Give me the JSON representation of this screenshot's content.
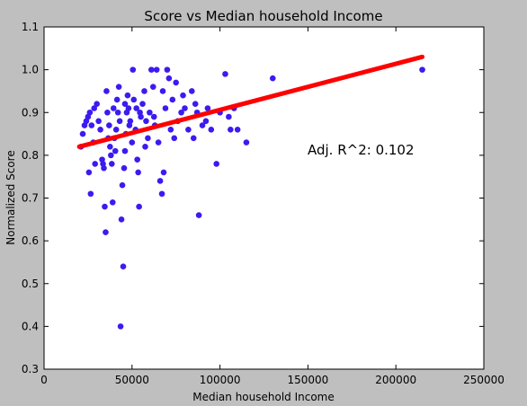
{
  "chart_data": {
    "type": "scatter",
    "title": "Score vs Median household Income",
    "xlabel": "Median household Income",
    "ylabel": "Normalized Score",
    "xlim": [
      0,
      250000
    ],
    "ylim": [
      0.3,
      1.1
    ],
    "x_ticks": [
      0,
      50000,
      100000,
      150000,
      200000,
      250000
    ],
    "y_ticks": [
      0.3,
      0.4,
      0.5,
      0.6,
      0.7,
      0.8,
      0.9,
      1.0,
      1.1
    ],
    "x_tick_labels": [
      "0",
      "50000",
      "100000",
      "150000",
      "200000",
      "250000"
    ],
    "y_tick_labels": [
      "0.3",
      "0.4",
      "0.5",
      "0.6",
      "0.7",
      "0.8",
      "0.9",
      "1.0",
      "1.1"
    ],
    "grid": false,
    "annotation": "Adj. R^2: 0.102",
    "point_color": "#3b1bf0",
    "line_color": "#ff0000",
    "regression_line": {
      "x": [
        20000,
        215000
      ],
      "y": [
        0.82,
        1.03
      ]
    },
    "points": [
      {
        "x": 21000,
        "y": 0.82
      },
      {
        "x": 22000,
        "y": 0.85
      },
      {
        "x": 23000,
        "y": 0.87
      },
      {
        "x": 24000,
        "y": 0.88
      },
      {
        "x": 25000,
        "y": 0.89
      },
      {
        "x": 26000,
        "y": 0.9
      },
      {
        "x": 27000,
        "y": 0.87
      },
      {
        "x": 25500,
        "y": 0.76
      },
      {
        "x": 26500,
        "y": 0.71
      },
      {
        "x": 28000,
        "y": 0.83
      },
      {
        "x": 29000,
        "y": 0.78
      },
      {
        "x": 30000,
        "y": 0.92
      },
      {
        "x": 31000,
        "y": 0.88
      },
      {
        "x": 32000,
        "y": 0.86
      },
      {
        "x": 33000,
        "y": 0.79
      },
      {
        "x": 33500,
        "y": 0.78
      },
      {
        "x": 34000,
        "y": 0.77
      },
      {
        "x": 34500,
        "y": 0.68
      },
      {
        "x": 35000,
        "y": 0.62
      },
      {
        "x": 35500,
        "y": 0.95
      },
      {
        "x": 36000,
        "y": 0.9
      },
      {
        "x": 37000,
        "y": 0.87
      },
      {
        "x": 37500,
        "y": 0.82
      },
      {
        "x": 38000,
        "y": 0.8
      },
      {
        "x": 38500,
        "y": 0.78
      },
      {
        "x": 39000,
        "y": 0.69
      },
      {
        "x": 40000,
        "y": 0.84
      },
      {
        "x": 40500,
        "y": 0.81
      },
      {
        "x": 41000,
        "y": 0.86
      },
      {
        "x": 41500,
        "y": 0.93
      },
      {
        "x": 42000,
        "y": 0.9
      },
      {
        "x": 43000,
        "y": 0.88
      },
      {
        "x": 43500,
        "y": 0.4
      },
      {
        "x": 44000,
        "y": 0.65
      },
      {
        "x": 44500,
        "y": 0.73
      },
      {
        "x": 45000,
        "y": 0.54
      },
      {
        "x": 45500,
        "y": 0.77
      },
      {
        "x": 46000,
        "y": 0.81
      },
      {
        "x": 46500,
        "y": 0.85
      },
      {
        "x": 47000,
        "y": 0.9
      },
      {
        "x": 47500,
        "y": 0.94
      },
      {
        "x": 48000,
        "y": 0.91
      },
      {
        "x": 49000,
        "y": 0.88
      },
      {
        "x": 50000,
        "y": 0.83
      },
      {
        "x": 50500,
        "y": 1.0
      },
      {
        "x": 51000,
        "y": 0.93
      },
      {
        "x": 52000,
        "y": 0.86
      },
      {
        "x": 53000,
        "y": 0.79
      },
      {
        "x": 53500,
        "y": 0.76
      },
      {
        "x": 54000,
        "y": 0.68
      },
      {
        "x": 55000,
        "y": 0.89
      },
      {
        "x": 56000,
        "y": 0.92
      },
      {
        "x": 57000,
        "y": 0.95
      },
      {
        "x": 58000,
        "y": 0.88
      },
      {
        "x": 59000,
        "y": 0.84
      },
      {
        "x": 60000,
        "y": 0.9
      },
      {
        "x": 61000,
        "y": 1.0
      },
      {
        "x": 62000,
        "y": 0.96
      },
      {
        "x": 63000,
        "y": 0.87
      },
      {
        "x": 64000,
        "y": 1.0
      },
      {
        "x": 65000,
        "y": 0.83
      },
      {
        "x": 66000,
        "y": 0.74
      },
      {
        "x": 67000,
        "y": 0.71
      },
      {
        "x": 68000,
        "y": 0.76
      },
      {
        "x": 69000,
        "y": 0.91
      },
      {
        "x": 70000,
        "y": 1.0
      },
      {
        "x": 71000,
        "y": 0.98
      },
      {
        "x": 72000,
        "y": 0.86
      },
      {
        "x": 73000,
        "y": 0.93
      },
      {
        "x": 75000,
        "y": 0.97
      },
      {
        "x": 76000,
        "y": 0.88
      },
      {
        "x": 78000,
        "y": 0.9
      },
      {
        "x": 80000,
        "y": 0.91
      },
      {
        "x": 82000,
        "y": 0.86
      },
      {
        "x": 84000,
        "y": 0.95
      },
      {
        "x": 85000,
        "y": 0.84
      },
      {
        "x": 87000,
        "y": 0.9
      },
      {
        "x": 88000,
        "y": 0.66
      },
      {
        "x": 90000,
        "y": 0.87
      },
      {
        "x": 92000,
        "y": 0.88
      },
      {
        "x": 95000,
        "y": 0.86
      },
      {
        "x": 98000,
        "y": 0.78
      },
      {
        "x": 100000,
        "y": 0.9
      },
      {
        "x": 103000,
        "y": 0.99
      },
      {
        "x": 105000,
        "y": 0.89
      },
      {
        "x": 108000,
        "y": 0.91
      },
      {
        "x": 110000,
        "y": 0.86
      },
      {
        "x": 115000,
        "y": 0.83
      },
      {
        "x": 130000,
        "y": 0.98
      },
      {
        "x": 215000,
        "y": 1.0
      },
      {
        "x": 28500,
        "y": 0.91
      },
      {
        "x": 36500,
        "y": 0.84
      },
      {
        "x": 42500,
        "y": 0.96
      },
      {
        "x": 48500,
        "y": 0.87
      },
      {
        "x": 52500,
        "y": 0.91
      },
      {
        "x": 57500,
        "y": 0.82
      },
      {
        "x": 62500,
        "y": 0.89
      },
      {
        "x": 67500,
        "y": 0.95
      },
      {
        "x": 74000,
        "y": 0.84
      },
      {
        "x": 79000,
        "y": 0.94
      },
      {
        "x": 86000,
        "y": 0.92
      },
      {
        "x": 93000,
        "y": 0.91
      },
      {
        "x": 106000,
        "y": 0.86
      },
      {
        "x": 39500,
        "y": 0.91
      },
      {
        "x": 46000,
        "y": 0.92
      },
      {
        "x": 54500,
        "y": 0.9
      }
    ]
  }
}
